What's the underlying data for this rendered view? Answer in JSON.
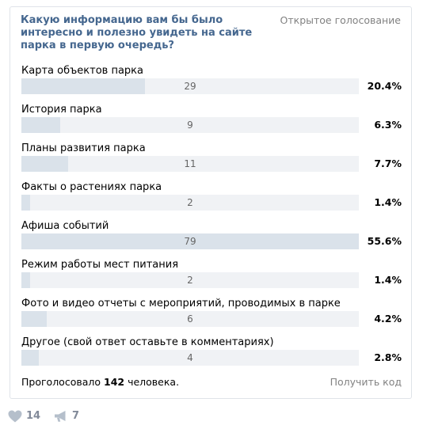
{
  "poll": {
    "question": "Какую информацию вам бы было интересно и полезно увидеть на сайте парка в первую очередь?",
    "type_label": "Открытое голосование",
    "options": [
      {
        "label": "Карта объектов парка",
        "count": "29",
        "percent": "20.4%",
        "share": 0.367
      },
      {
        "label": "История парка",
        "count": "9",
        "percent": "6.3%",
        "share": 0.114
      },
      {
        "label": "Планы развития парка",
        "count": "11",
        "percent": "7.7%",
        "share": 0.139
      },
      {
        "label": "Факты о растениях парка",
        "count": "2",
        "percent": "1.4%",
        "share": 0.025
      },
      {
        "label": "Афиша событий",
        "count": "79",
        "percent": "55.6%",
        "share": 1.0
      },
      {
        "label": "Режим работы мест питания",
        "count": "2",
        "percent": "1.4%",
        "share": 0.025
      },
      {
        "label": "Фото и видео отчеты с мероприятий, проводимых в парке",
        "count": "6",
        "percent": "4.2%",
        "share": 0.076
      },
      {
        "label": "Другое (свой ответ оставьте в комментариях)",
        "count": "4",
        "percent": "2.8%",
        "share": 0.051
      }
    ],
    "voted_prefix": "Проголосовало",
    "voted_total": "142",
    "voted_suffix": "человека.",
    "get_code_label": "Получить код"
  },
  "actions": {
    "likes": "14",
    "shares": "7"
  },
  "colors": {
    "question": "#45678f",
    "bar_fill": "#dae2ea",
    "bar_track": "#f0f2f5",
    "muted": "#828282",
    "action_icon": "#b5bfcb"
  },
  "icons": {
    "like": "heart-icon",
    "share": "megaphone-icon"
  }
}
